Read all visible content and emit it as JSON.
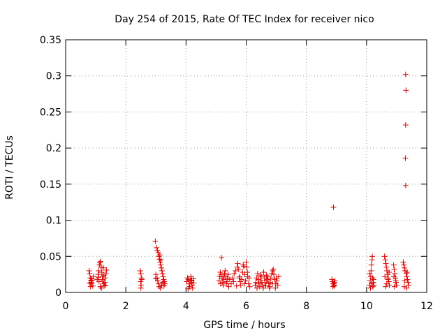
{
  "chart_data": {
    "type": "scatter",
    "title": "Day 254 of 2015, Rate Of TEC Index for receiver nico",
    "xlabel": "GPS time / hours",
    "ylabel": "ROTI / TECUs",
    "xlim": [
      0,
      12
    ],
    "ylim": [
      0,
      0.35
    ],
    "xticks": [
      0,
      2,
      4,
      6,
      8,
      10,
      12
    ],
    "xtick_labels": [
      "0",
      "2",
      "4",
      "6",
      "8",
      "10",
      "12"
    ],
    "yticks": [
      0,
      0.05,
      0.1,
      0.15,
      0.2,
      0.25,
      0.3,
      0.35
    ],
    "ytick_labels": [
      "0",
      "0.05",
      "0.1",
      "0.15",
      "0.2",
      "0.25",
      "0.3",
      "0.35"
    ],
    "grid": true,
    "marker": "+",
    "marker_color": "#dd0000",
    "series": [
      {
        "name": "ROTI",
        "points": [
          [
            0.78,
            0.03
          ],
          [
            0.8,
            0.026
          ],
          [
            0.82,
            0.02
          ],
          [
            0.84,
            0.017
          ],
          [
            0.85,
            0.014
          ],
          [
            0.86,
            0.012
          ],
          [
            0.88,
            0.016
          ],
          [
            0.9,
            0.009
          ],
          [
            0.92,
            0.022
          ],
          [
            0.79,
            0.013
          ],
          [
            0.83,
            0.008
          ],
          [
            0.87,
            0.019
          ],
          [
            1.05,
            0.018
          ],
          [
            1.08,
            0.025
          ],
          [
            1.1,
            0.03
          ],
          [
            1.12,
            0.038
          ],
          [
            1.14,
            0.041
          ],
          [
            1.16,
            0.043
          ],
          [
            1.18,
            0.035
          ],
          [
            1.2,
            0.028
          ],
          [
            1.22,
            0.022
          ],
          [
            1.24,
            0.016
          ],
          [
            1.26,
            0.012
          ],
          [
            1.28,
            0.009
          ],
          [
            1.3,
            0.014
          ],
          [
            1.32,
            0.02
          ],
          [
            1.34,
            0.026
          ],
          [
            1.36,
            0.031
          ],
          [
            1.15,
            0.008
          ],
          [
            1.19,
            0.006
          ],
          [
            1.23,
            0.018
          ],
          [
            1.27,
            0.024
          ],
          [
            1.11,
            0.015
          ],
          [
            1.33,
            0.01
          ],
          [
            1.25,
            0.034
          ],
          [
            1.09,
            0.021
          ],
          [
            2.48,
            0.03
          ],
          [
            2.5,
            0.026
          ],
          [
            2.52,
            0.02
          ],
          [
            2.49,
            0.015
          ],
          [
            2.51,
            0.01
          ],
          [
            2.5,
            0.006
          ],
          [
            2.53,
            0.018
          ],
          [
            2.98,
            0.071
          ],
          [
            3.02,
            0.062
          ],
          [
            3.05,
            0.058
          ],
          [
            3.08,
            0.055
          ],
          [
            3.1,
            0.05
          ],
          [
            3.12,
            0.046
          ],
          [
            3.14,
            0.042
          ],
          [
            3.16,
            0.038
          ],
          [
            3.18,
            0.034
          ],
          [
            3.2,
            0.03
          ],
          [
            3.22,
            0.026
          ],
          [
            3.24,
            0.022
          ],
          [
            3.26,
            0.018
          ],
          [
            3.28,
            0.015
          ],
          [
            3.3,
            0.012
          ],
          [
            3.0,
            0.025
          ],
          [
            3.04,
            0.02
          ],
          [
            3.06,
            0.016
          ],
          [
            3.09,
            0.012
          ],
          [
            3.11,
            0.008
          ],
          [
            3.15,
            0.006
          ],
          [
            3.19,
            0.01
          ],
          [
            3.23,
            0.014
          ],
          [
            3.27,
            0.009
          ],
          [
            3.13,
            0.052
          ],
          [
            3.17,
            0.045
          ],
          [
            2.99,
            0.019
          ],
          [
            4.02,
            0.015
          ],
          [
            4.05,
            0.02
          ],
          [
            4.08,
            0.018
          ],
          [
            4.1,
            0.012
          ],
          [
            4.12,
            0.008
          ],
          [
            4.14,
            0.016
          ],
          [
            4.16,
            0.022
          ],
          [
            4.18,
            0.014
          ],
          [
            4.2,
            0.01
          ],
          [
            4.22,
            0.006
          ],
          [
            4.24,
            0.019
          ],
          [
            4.26,
            0.013
          ],
          [
            4.07,
            0.005
          ],
          [
            4.19,
            0.017
          ],
          [
            5.1,
            0.016
          ],
          [
            5.12,
            0.022
          ],
          [
            5.14,
            0.028
          ],
          [
            5.16,
            0.025
          ],
          [
            5.18,
            0.048
          ],
          [
            5.2,
            0.02
          ],
          [
            5.22,
            0.014
          ],
          [
            5.24,
            0.01
          ],
          [
            5.26,
            0.018
          ],
          [
            5.28,
            0.026
          ],
          [
            5.3,
            0.03
          ],
          [
            5.32,
            0.022
          ],
          [
            5.34,
            0.015
          ],
          [
            5.36,
            0.012
          ],
          [
            5.38,
            0.02
          ],
          [
            5.4,
            0.025
          ],
          [
            5.45,
            0.018
          ],
          [
            5.5,
            0.012
          ],
          [
            5.55,
            0.02
          ],
          [
            5.6,
            0.026
          ],
          [
            5.65,
            0.03
          ],
          [
            5.7,
            0.035
          ],
          [
            5.72,
            0.04
          ],
          [
            5.75,
            0.032
          ],
          [
            5.78,
            0.022
          ],
          [
            5.8,
            0.015
          ],
          [
            5.82,
            0.01
          ],
          [
            5.85,
            0.018
          ],
          [
            5.88,
            0.028
          ],
          [
            5.9,
            0.038
          ],
          [
            5.92,
            0.036
          ],
          [
            5.95,
            0.025
          ],
          [
            5.98,
            0.016
          ],
          [
            6.0,
            0.042
          ],
          [
            6.02,
            0.035
          ],
          [
            6.05,
            0.022
          ],
          [
            6.08,
            0.012
          ],
          [
            6.1,
            0.02
          ],
          [
            6.12,
            0.008
          ],
          [
            5.15,
            0.012
          ],
          [
            5.25,
            0.022
          ],
          [
            5.42,
            0.008
          ],
          [
            5.58,
            0.015
          ],
          [
            5.68,
            0.009
          ],
          [
            5.77,
            0.02
          ],
          [
            5.94,
            0.012
          ],
          [
            6.04,
            0.028
          ],
          [
            6.3,
            0.01
          ],
          [
            6.32,
            0.014
          ],
          [
            6.35,
            0.02
          ],
          [
            6.38,
            0.026
          ],
          [
            6.4,
            0.018
          ],
          [
            6.42,
            0.012
          ],
          [
            6.45,
            0.008
          ],
          [
            6.48,
            0.016
          ],
          [
            6.5,
            0.022
          ],
          [
            6.52,
            0.014
          ],
          [
            6.55,
            0.01
          ],
          [
            6.58,
            0.028
          ],
          [
            6.6,
            0.02
          ],
          [
            6.62,
            0.014
          ],
          [
            6.65,
            0.009
          ],
          [
            6.68,
            0.016
          ],
          [
            6.7,
            0.022
          ],
          [
            6.72,
            0.018
          ],
          [
            6.75,
            0.012
          ],
          [
            6.78,
            0.008
          ],
          [
            6.8,
            0.014
          ],
          [
            6.82,
            0.02
          ],
          [
            6.85,
            0.026
          ],
          [
            6.88,
            0.03
          ],
          [
            6.9,
            0.032
          ],
          [
            6.92,
            0.025
          ],
          [
            6.95,
            0.018
          ],
          [
            6.98,
            0.012
          ],
          [
            7.0,
            0.02
          ],
          [
            7.02,
            0.016
          ],
          [
            7.05,
            0.01
          ],
          [
            7.08,
            0.022
          ],
          [
            6.36,
            0.006
          ],
          [
            6.47,
            0.024
          ],
          [
            6.57,
            0.006
          ],
          [
            6.67,
            0.024
          ],
          [
            6.77,
            0.006
          ],
          [
            6.87,
            0.012
          ],
          [
            6.97,
            0.006
          ],
          [
            8.85,
            0.018
          ],
          [
            8.87,
            0.015
          ],
          [
            8.89,
            0.012
          ],
          [
            8.9,
            0.118
          ],
          [
            8.91,
            0.01
          ],
          [
            8.93,
            0.014
          ],
          [
            8.95,
            0.016
          ],
          [
            8.88,
            0.008
          ],
          [
            8.92,
            0.012
          ],
          [
            8.94,
            0.009
          ],
          [
            10.1,
            0.01
          ],
          [
            10.12,
            0.016
          ],
          [
            10.14,
            0.022
          ],
          [
            10.15,
            0.03
          ],
          [
            10.16,
            0.038
          ],
          [
            10.18,
            0.045
          ],
          [
            10.19,
            0.05
          ],
          [
            10.2,
            0.02
          ],
          [
            10.22,
            0.014
          ],
          [
            10.24,
            0.01
          ],
          [
            10.13,
            0.006
          ],
          [
            10.17,
            0.012
          ],
          [
            10.21,
            0.008
          ],
          [
            10.23,
            0.018
          ],
          [
            10.11,
            0.026
          ],
          [
            10.6,
            0.05
          ],
          [
            10.62,
            0.045
          ],
          [
            10.64,
            0.04
          ],
          [
            10.66,
            0.035
          ],
          [
            10.68,
            0.03
          ],
          [
            10.7,
            0.025
          ],
          [
            10.72,
            0.02
          ],
          [
            10.74,
            0.015
          ],
          [
            10.76,
            0.01
          ],
          [
            10.63,
            0.008
          ],
          [
            10.67,
            0.012
          ],
          [
            10.71,
            0.018
          ],
          [
            10.75,
            0.028
          ],
          [
            10.61,
            0.022
          ],
          [
            10.9,
            0.038
          ],
          [
            10.92,
            0.032
          ],
          [
            10.94,
            0.026
          ],
          [
            10.96,
            0.02
          ],
          [
            10.98,
            0.014
          ],
          [
            11.0,
            0.01
          ],
          [
            10.93,
            0.008
          ],
          [
            10.97,
            0.016
          ],
          [
            10.91,
            0.022
          ],
          [
            11.22,
            0.042
          ],
          [
            11.24,
            0.038
          ],
          [
            11.26,
            0.034
          ],
          [
            11.28,
            0.03
          ],
          [
            11.3,
            0.302
          ],
          [
            11.31,
            0.28
          ],
          [
            11.3,
            0.232
          ],
          [
            11.29,
            0.186
          ],
          [
            11.3,
            0.148
          ],
          [
            11.32,
            0.026
          ],
          [
            11.34,
            0.022
          ],
          [
            11.36,
            0.018
          ],
          [
            11.38,
            0.014
          ],
          [
            11.4,
            0.01
          ],
          [
            11.25,
            0.008
          ],
          [
            11.33,
            0.006
          ],
          [
            11.27,
            0.016
          ],
          [
            11.35,
            0.028
          ]
        ]
      }
    ]
  }
}
